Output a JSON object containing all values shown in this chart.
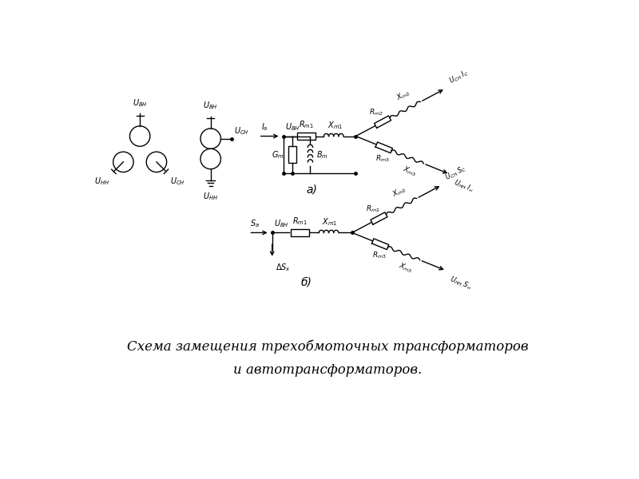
{
  "title_line1": "Схема замещения трехобмоточных трансформаторов",
  "title_line2": "и автотрансформаторов.",
  "label_a": "а)",
  "label_b": "б)",
  "bg_color": "#ffffff",
  "fig_w": 8.0,
  "fig_h": 6.0,
  "dpi": 100
}
